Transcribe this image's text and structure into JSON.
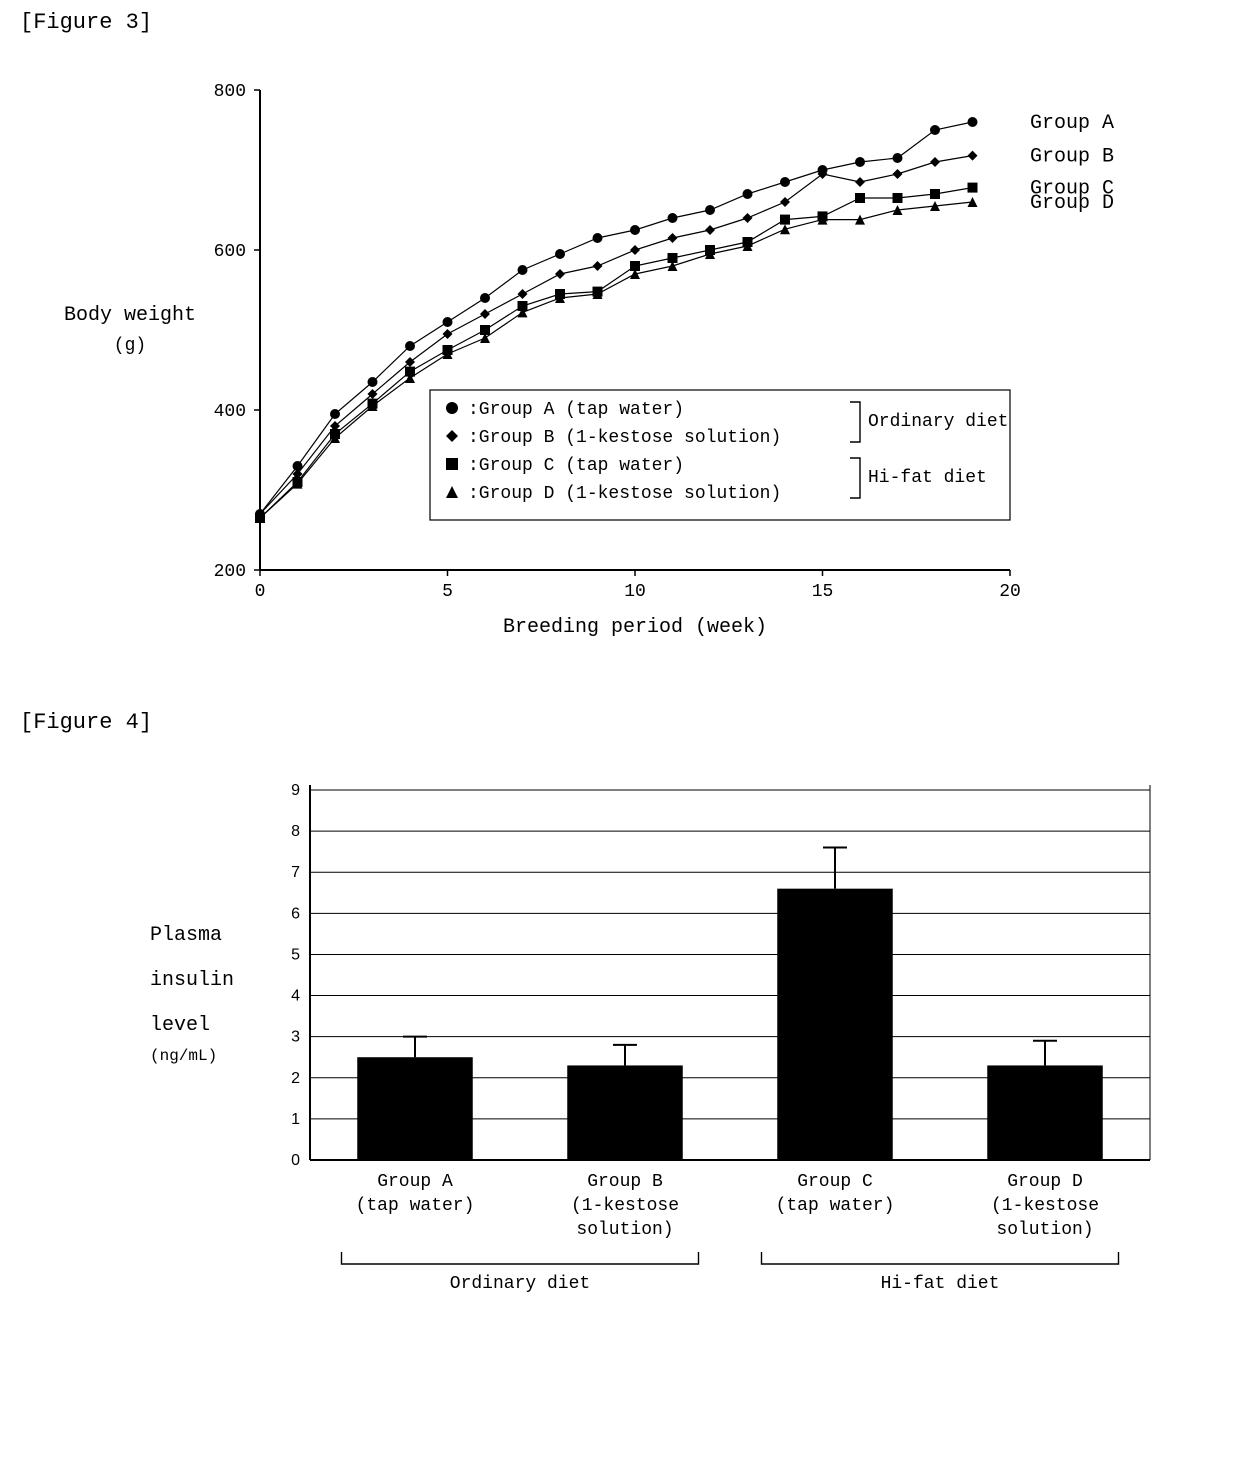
{
  "figure3": {
    "title": "[Figure 3]",
    "type": "line",
    "ylabel": "Body weight",
    "ylabel_unit": "(g)",
    "xlabel": "Breeding period (week)",
    "label_fontsize": 20,
    "xlim": [
      0,
      20
    ],
    "ylim": [
      200,
      800
    ],
    "xticks": [
      0,
      5,
      10,
      15,
      20
    ],
    "yticks": [
      200,
      400,
      600,
      800
    ],
    "line_color": "#000000",
    "line_width": 1.2,
    "marker_size": 5,
    "background_color": "#ffffff",
    "grid_color": "#000000",
    "tick_fontsize": 18,
    "series": {
      "groupA": {
        "marker": "circle",
        "label": "Group A (tap water)",
        "end_label": "Group A",
        "x": [
          0,
          1,
          2,
          3,
          4,
          5,
          6,
          7,
          8,
          9,
          10,
          11,
          12,
          13,
          14,
          15,
          16,
          17,
          18,
          19
        ],
        "y": [
          270,
          330,
          395,
          435,
          480,
          510,
          540,
          575,
          595,
          615,
          625,
          640,
          650,
          670,
          685,
          700,
          710,
          715,
          750,
          760
        ]
      },
      "groupB": {
        "marker": "diamond",
        "label": "Group B (1-kestose solution)",
        "end_label": "Group B",
        "x": [
          0,
          1,
          2,
          3,
          4,
          5,
          6,
          7,
          8,
          9,
          10,
          11,
          12,
          13,
          14,
          15,
          16,
          17,
          18,
          19
        ],
        "y": [
          270,
          320,
          380,
          420,
          460,
          495,
          520,
          545,
          570,
          580,
          600,
          615,
          625,
          640,
          660,
          695,
          685,
          695,
          710,
          718
        ]
      },
      "groupC": {
        "marker": "square",
        "label": "Group C (tap water)",
        "end_label": "Group C",
        "x": [
          0,
          1,
          2,
          3,
          4,
          5,
          6,
          7,
          8,
          9,
          10,
          11,
          12,
          13,
          14,
          15,
          16,
          17,
          18,
          19
        ],
        "y": [
          265,
          310,
          370,
          408,
          448,
          475,
          500,
          530,
          545,
          548,
          580,
          590,
          600,
          610,
          638,
          642,
          665,
          665,
          670,
          678
        ]
      },
      "groupD": {
        "marker": "triangle",
        "label": "Group D (1-kestose solution)",
        "end_label": "Group D",
        "x": [
          0,
          1,
          2,
          3,
          4,
          5,
          6,
          7,
          8,
          9,
          10,
          11,
          12,
          13,
          14,
          15,
          16,
          17,
          18,
          19
        ],
        "y": [
          265,
          308,
          365,
          405,
          440,
          470,
          490,
          522,
          540,
          545,
          570,
          580,
          595,
          605,
          626,
          638,
          638,
          650,
          655,
          660
        ]
      }
    },
    "legend": {
      "border_color": "#000000",
      "diet_ordinary": "Ordinary diet",
      "diet_hifat": "Hi-fat diet"
    }
  },
  "figure4": {
    "title": "[Figure 4]",
    "type": "bar",
    "ylabel_line1": "Plasma",
    "ylabel_line2": "insulin",
    "ylabel_line3": "level",
    "ylabel_unit": "(ng/mL)",
    "ylim": [
      0,
      9
    ],
    "yticks": [
      0,
      1,
      2,
      3,
      4,
      5,
      6,
      7,
      8,
      9
    ],
    "bar_color": "#000000",
    "bar_width": 0.55,
    "error_color": "#000000",
    "error_line_width": 2,
    "grid_color": "#000000",
    "tick_fontsize": 16,
    "label_fontsize": 20,
    "categories": [
      {
        "name": "Group A",
        "sub": "(tap water)",
        "value": 2.5,
        "error": 0.5
      },
      {
        "name": "Group B",
        "sub": "(1-kestose",
        "sub2": "solution)",
        "value": 2.3,
        "error": 0.5
      },
      {
        "name": "Group C",
        "sub": "(tap water)",
        "value": 6.6,
        "error": 1.0
      },
      {
        "name": "Group D",
        "sub": "(1-kestose",
        "sub2": "solution)",
        "value": 2.3,
        "error": 0.6
      }
    ],
    "diet_ordinary": "Ordinary diet",
    "diet_hifat": "Hi-fat diet"
  }
}
